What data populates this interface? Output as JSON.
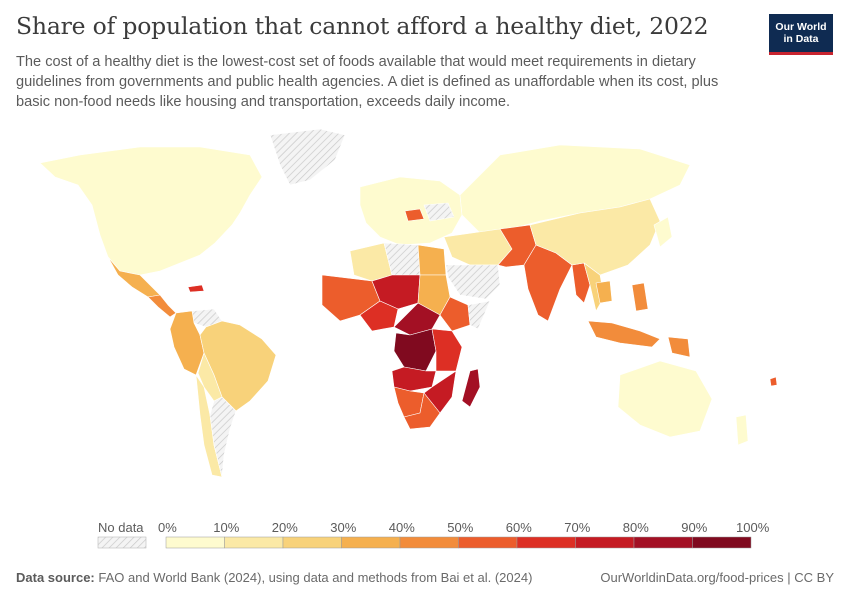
{
  "header": {
    "title": "Share of population that cannot afford a healthy diet, 2022",
    "subtitle": "The cost of a healthy diet is the lowest-cost set of foods available that would meet requirements in dietary guidelines from governments and public health agencies. A diet is defined as unaffordable when its cost, plus basic non-food needs like housing and transportation, exceeds daily income."
  },
  "logo": {
    "line1": "Our World",
    "line2": "in Data",
    "bg": "#0f2b52",
    "accent": "#c8242f"
  },
  "legend": {
    "no_data_label": "No data",
    "tick_labels": [
      "0%",
      "10%",
      "20%",
      "30%",
      "40%",
      "50%",
      "60%",
      "70%",
      "80%",
      "90%",
      "100%"
    ],
    "colors": [
      "#fefbcf",
      "#fbe9a6",
      "#f8d27a",
      "#f5b04f",
      "#f28c3b",
      "#ec5d2c",
      "#dd2f24",
      "#c51b23",
      "#a31024",
      "#800a1f"
    ]
  },
  "footer": {
    "source_label": "Data source:",
    "source_text": "FAO and World Bank (2024), using data and methods from Bai et al. (2024)",
    "url_text": "OurWorldinData.org/food-prices | CC BY"
  },
  "map_data": {
    "no_data_regions": [
      "Greenland",
      "Western Sahara region",
      "Libya",
      "Saudi Arabia region",
      "Venezuela",
      "Argentina",
      "Somalia region",
      "Ukraine region"
    ],
    "regions": [
      {
        "name": "Canada & USA",
        "band": 0
      },
      {
        "name": "Mexico",
        "band": 3
      },
      {
        "name": "Central America",
        "band": 4
      },
      {
        "name": "Haiti",
        "band": 6
      },
      {
        "name": "Colombia & Peru",
        "band": 3
      },
      {
        "name": "Brazil",
        "band": 2
      },
      {
        "name": "Chile & Southern cone",
        "band": 1
      },
      {
        "name": "Bolivia & Paraguay",
        "band": 1
      },
      {
        "name": "Europe",
        "band": 0
      },
      {
        "name": "Romania",
        "band": 5
      },
      {
        "name": "Russia & Central Asia",
        "band": 0
      },
      {
        "name": "Algeria",
        "band": 1
      },
      {
        "name": "Egypt",
        "band": 3
      },
      {
        "name": "Sahel",
        "band": 5
      },
      {
        "name": "Niger & Chad",
        "band": 7
      },
      {
        "name": "Nigeria",
        "band": 6
      },
      {
        "name": "Sudan",
        "band": 3
      },
      {
        "name": "Ethiopia",
        "band": 5
      },
      {
        "name": "Central Africa",
        "band": 8
      },
      {
        "name": "DR Congo",
        "band": 9
      },
      {
        "name": "Kenya & Tanzania",
        "band": 6
      },
      {
        "name": "Angola & Zambia",
        "band": 7
      },
      {
        "name": "Namibia & Botswana",
        "band": 5
      },
      {
        "name": "South Africa",
        "band": 5
      },
      {
        "name": "Mozambique",
        "band": 7
      },
      {
        "name": "Madagascar",
        "band": 8
      },
      {
        "name": "Iran & Middle East",
        "band": 1
      },
      {
        "name": "Afghanistan & Pakistan",
        "band": 5
      },
      {
        "name": "India",
        "band": 5
      },
      {
        "name": "Myanmar",
        "band": 5
      },
      {
        "name": "China",
        "band": 1
      },
      {
        "name": "Southeast Asia",
        "band": 2
      },
      {
        "name": "Laos & Cambodia",
        "band": 3
      },
      {
        "name": "Philippines",
        "band": 4
      },
      {
        "name": "Indonesia",
        "band": 4
      },
      {
        "name": "Papua New Guinea",
        "band": 4
      },
      {
        "name": "Japan & Korea",
        "band": 0
      },
      {
        "name": "Australia",
        "band": 0
      },
      {
        "name": "New Zealand",
        "band": 0
      },
      {
        "name": "Vanuatu",
        "band": 5
      }
    ]
  }
}
